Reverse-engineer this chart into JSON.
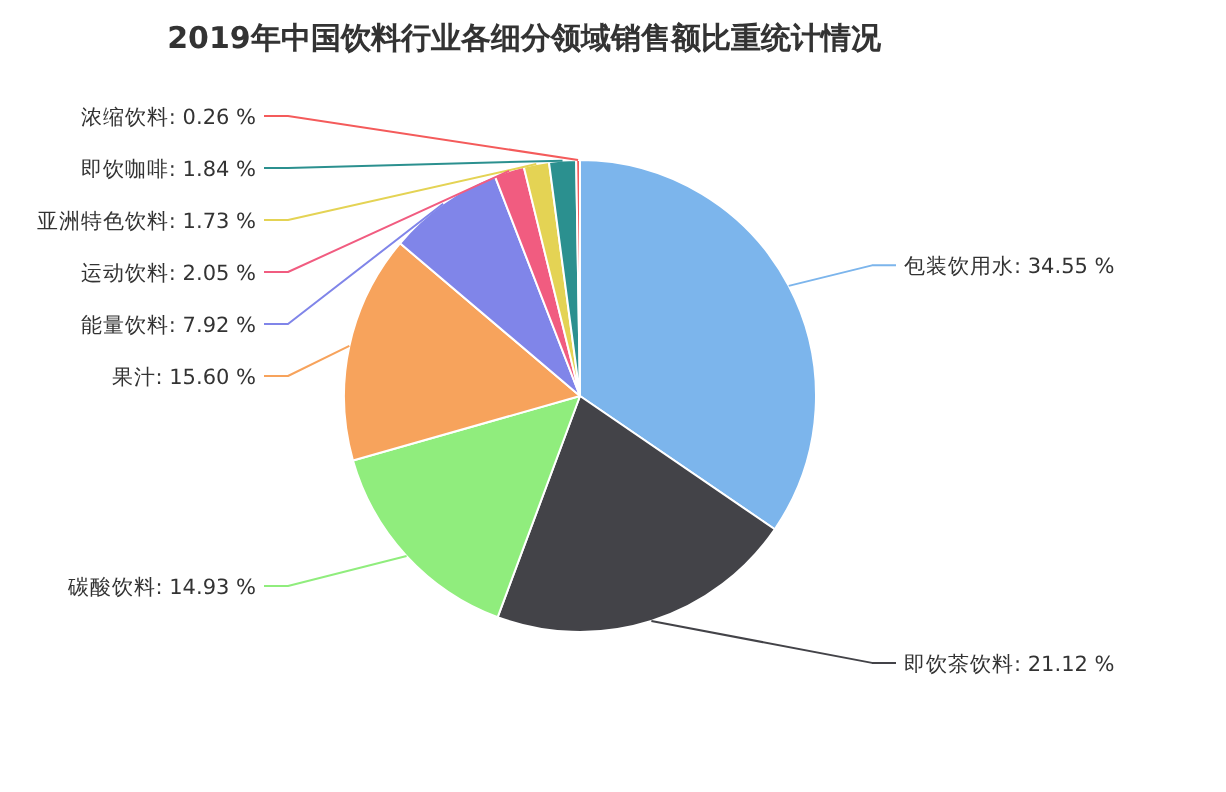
{
  "chart_data": {
    "type": "pie",
    "title": "2019年中国饮料行业各细分领域销售额比重统计情况",
    "categories": [
      "包装饮用水",
      "即饮茶饮料",
      "碳酸饮料",
      "果汁",
      "能量饮料",
      "运动饮料",
      "亚洲特色饮料",
      "即饮咖啡",
      "浓缩饮料"
    ],
    "values": [
      34.55,
      21.12,
      14.93,
      15.6,
      7.92,
      2.05,
      1.73,
      1.84,
      0.26
    ],
    "value_labels": [
      "34.55 %",
      "21.12 %",
      "14.93 %",
      "15.60 %",
      "7.92 %",
      "2.05 %",
      "1.73 %",
      "1.84 %",
      "0.26 %"
    ],
    "colors": [
      "#7cb5ec",
      "#434348",
      "#90ed7d",
      "#f7a35c",
      "#8085e9",
      "#f15c80",
      "#e4d354",
      "#2b908f",
      "#f45b5b"
    ]
  }
}
